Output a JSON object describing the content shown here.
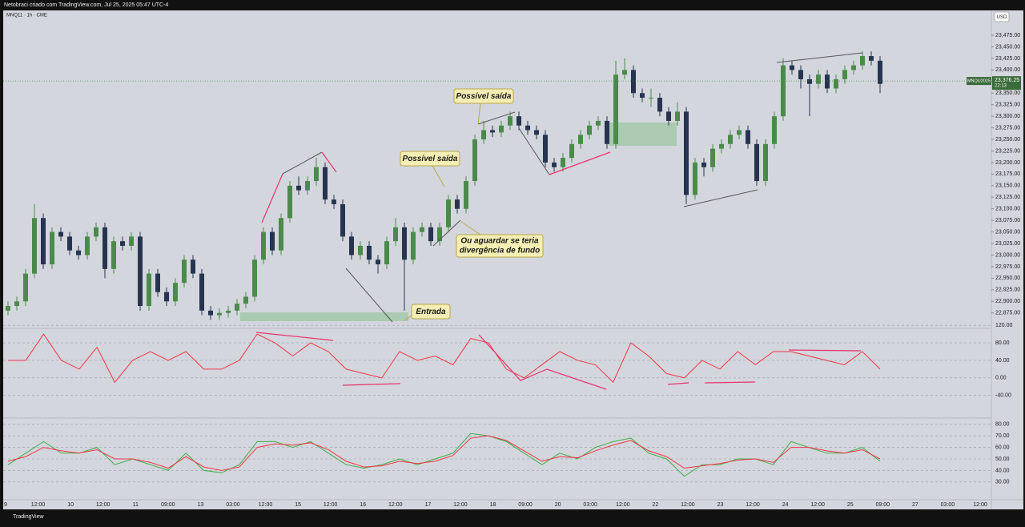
{
  "header": {
    "caption": "Netobraci criado com TradingView.com, Jul 25, 2025 05:47 UTC-4",
    "legend": "MNQ11 · 1h · CME",
    "currency": "USD",
    "footer": "TradingView"
  },
  "chart_data": [
    {
      "type": "candlestick",
      "up_color": "#4b8a4b",
      "down_color": "#26344f",
      "candles": [
        [
          22880,
          22900,
          22870,
          22890
        ],
        [
          22890,
          22910,
          22880,
          22900
        ],
        [
          22900,
          22970,
          22890,
          22960
        ],
        [
          22960,
          23110,
          22950,
          23080
        ],
        [
          23080,
          23090,
          22970,
          22980
        ],
        [
          22980,
          23060,
          22970,
          23050
        ],
        [
          23050,
          23060,
          23030,
          23040
        ],
        [
          23040,
          23050,
          23000,
          23010
        ],
        [
          23010,
          23020,
          22990,
          23000
        ],
        [
          23000,
          23050,
          22990,
          23040
        ],
        [
          23040,
          23070,
          23030,
          23060
        ],
        [
          23060,
          23070,
          22950,
          22970
        ],
        [
          22970,
          23040,
          22960,
          23030
        ],
        [
          23030,
          23040,
          23010,
          23020
        ],
        [
          23020,
          23050,
          23010,
          23040
        ],
        [
          23040,
          23050,
          22880,
          22890
        ],
        [
          22890,
          22970,
          22880,
          22960
        ],
        [
          22960,
          22970,
          22910,
          22920
        ],
        [
          22920,
          22930,
          22890,
          22900
        ],
        [
          22900,
          22950,
          22890,
          22940
        ],
        [
          22940,
          23000,
          22930,
          22990
        ],
        [
          22990,
          23000,
          22950,
          22960
        ],
        [
          22960,
          22970,
          22870,
          22880
        ],
        [
          22880,
          22890,
          22860,
          22870
        ],
        [
          22870,
          22885,
          22860,
          22875
        ],
        [
          22875,
          22890,
          22865,
          22880
        ],
        [
          22880,
          22905,
          22870,
          22895
        ],
        [
          22895,
          22920,
          22885,
          22910
        ],
        [
          22910,
          23000,
          22900,
          22990
        ],
        [
          22990,
          23060,
          22980,
          23050
        ],
        [
          23050,
          23060,
          23000,
          23010
        ],
        [
          23010,
          23090,
          23000,
          23080
        ],
        [
          23080,
          23160,
          23070,
          23150
        ],
        [
          23150,
          23170,
          23130,
          23140
        ],
        [
          23140,
          23170,
          23130,
          23160
        ],
        [
          23160,
          23210,
          23150,
          23190
        ],
        [
          23190,
          23200,
          23110,
          23120
        ],
        [
          23120,
          23130,
          23100,
          23110
        ],
        [
          23110,
          23120,
          23030,
          23040
        ],
        [
          23040,
          23050,
          22990,
          23000
        ],
        [
          23000,
          23030,
          22990,
          23020
        ],
        [
          23020,
          23030,
          22980,
          22990
        ],
        [
          22990,
          23000,
          22960,
          22980
        ],
        [
          22980,
          23040,
          22970,
          23030
        ],
        [
          23030,
          23080,
          23020,
          23060
        ],
        [
          23060,
          23070,
          22880,
          22990
        ],
        [
          22990,
          23060,
          22980,
          23050
        ],
        [
          23050,
          23070,
          23040,
          23060
        ],
        [
          23060,
          23070,
          23020,
          23030
        ],
        [
          23030,
          23070,
          23020,
          23060
        ],
        [
          23060,
          23130,
          23050,
          23120
        ],
        [
          23120,
          23130,
          23090,
          23100
        ],
        [
          23100,
          23170,
          23090,
          23160
        ],
        [
          23160,
          23260,
          23150,
          23250
        ],
        [
          23250,
          23290,
          23240,
          23270
        ],
        [
          23270,
          23280,
          23255,
          23265
        ],
        [
          23265,
          23290,
          23255,
          23280
        ],
        [
          23280,
          23310,
          23270,
          23300
        ],
        [
          23300,
          23310,
          23270,
          23280
        ],
        [
          23280,
          23290,
          23260,
          23270
        ],
        [
          23270,
          23280,
          23250,
          23260
        ],
        [
          23260,
          23270,
          23190,
          23200
        ],
        [
          23200,
          23210,
          23180,
          23190
        ],
        [
          23190,
          23220,
          23180,
          23210
        ],
        [
          23210,
          23250,
          23200,
          23240
        ],
        [
          23240,
          23270,
          23230,
          23260
        ],
        [
          23260,
          23290,
          23250,
          23280
        ],
        [
          23280,
          23300,
          23270,
          23290
        ],
        [
          23290,
          23300,
          23230,
          23240
        ],
        [
          23240,
          23420,
          23230,
          23390
        ],
        [
          23390,
          23425,
          23380,
          23400
        ],
        [
          23400,
          23410,
          23340,
          23350
        ],
        [
          23350,
          23360,
          23330,
          23340
        ],
        [
          23340,
          23360,
          23320,
          23340
        ],
        [
          23340,
          23350,
          23300,
          23310
        ],
        [
          23310,
          23320,
          23280,
          23290
        ],
        [
          23290,
          23330,
          23280,
          23310
        ],
        [
          23310,
          23320,
          23110,
          23130
        ],
        [
          23130,
          23210,
          23120,
          23200
        ],
        [
          23200,
          23210,
          23170,
          23190
        ],
        [
          23190,
          23240,
          23180,
          23230
        ],
        [
          23230,
          23250,
          23220,
          23240
        ],
        [
          23240,
          23270,
          23230,
          23260
        ],
        [
          23260,
          23280,
          23250,
          23270
        ],
        [
          23270,
          23280,
          23230,
          23240
        ],
        [
          23240,
          23250,
          23150,
          23160
        ],
        [
          23160,
          23250,
          23150,
          23240
        ],
        [
          23240,
          23310,
          23230,
          23300
        ],
        [
          23300,
          23425,
          23290,
          23410
        ],
        [
          23410,
          23420,
          23390,
          23400
        ],
        [
          23400,
          23410,
          23360,
          23380
        ],
        [
          23380,
          23390,
          23300,
          23370
        ],
        [
          23370,
          23400,
          23360,
          23390
        ],
        [
          23390,
          23400,
          23350,
          23360
        ],
        [
          23360,
          23390,
          23350,
          23380
        ],
        [
          23380,
          23410,
          23370,
          23400
        ],
        [
          23400,
          23420,
          23390,
          23410
        ],
        [
          23410,
          23440,
          23400,
          23430
        ],
        [
          23430,
          23440,
          23410,
          23420
        ],
        [
          23420,
          23430,
          23350,
          23370
        ]
      ],
      "ylim": [
        22852,
        23527
      ],
      "yticks": [
        {
          "value": 23475,
          "label": "23,475.00"
        },
        {
          "value": 23450,
          "label": "23,450.00"
        },
        {
          "value": 23425,
          "label": "23,425.00"
        },
        {
          "value": 23400,
          "label": "23,400.00"
        },
        {
          "value": 23375,
          "label": "23,375.00"
        },
        {
          "value": 23350,
          "label": "23,350.00"
        },
        {
          "value": 23325,
          "label": "23,325.00"
        },
        {
          "value": 23300,
          "label": "23,300.00"
        },
        {
          "value": 23275,
          "label": "23,275.00"
        },
        {
          "value": 23250,
          "label": "23,250.00"
        },
        {
          "value": 23225,
          "label": "23,225.00"
        },
        {
          "value": 23200,
          "label": "23,200.00"
        },
        {
          "value": 23175,
          "label": "23,175.00"
        },
        {
          "value": 23150,
          "label": "23,150.00"
        },
        {
          "value": 23125,
          "label": "23,125.00"
        },
        {
          "value": 23100,
          "label": "23,100.00"
        },
        {
          "value": 23075,
          "label": "23,075.00"
        },
        {
          "value": 23050,
          "label": "23,050.00"
        },
        {
          "value": 23025,
          "label": "23,025.00"
        },
        {
          "value": 23000,
          "label": "23,000.00"
        },
        {
          "value": 22975,
          "label": "22,975.00"
        },
        {
          "value": 22950,
          "label": "22,950.00"
        },
        {
          "value": 22925,
          "label": "22,925.00"
        },
        {
          "value": 22900,
          "label": "22,900.00"
        },
        {
          "value": 22875,
          "label": "22,875.00"
        }
      ],
      "last_price": {
        "value": 23376.25,
        "label": "23,376.25"
      },
      "symbol": "MNQU2025",
      "countdown": "22:13",
      "annotations": [
        "Possível saída",
        "Possível saída",
        [
          "Ou aguardar se teria",
          "divergência de fundo"
        ],
        "Entrada"
      ],
      "x_labels": [
        "9",
        "12:00",
        "10",
        "12:00",
        "11",
        "09:00",
        "13",
        "03:00",
        "12:00",
        "15",
        "12:00",
        "16",
        "12:00",
        "17",
        "12:00",
        "18",
        "09:00",
        "20",
        "03:00",
        "12:00",
        "22",
        "12:00",
        "23",
        "12:00",
        "24",
        "12:00",
        "25",
        "09:00",
        "27",
        "03:00",
        "12:00"
      ]
    },
    {
      "type": "line",
      "color": "#f23645",
      "values": [
        40,
        40,
        100,
        40,
        20,
        70,
        -10,
        40,
        60,
        40,
        60,
        20,
        20,
        40,
        100,
        80,
        50,
        80,
        60,
        20,
        10,
        0,
        60,
        40,
        50,
        30,
        90,
        80,
        20,
        0,
        30,
        60,
        40,
        30,
        -10,
        80,
        50,
        10,
        0,
        40,
        20,
        60,
        30,
        60,
        60,
        50,
        40,
        30,
        60,
        20
      ],
      "ylim": [
        -88,
        124
      ],
      "yticks": [
        {
          "value": 120,
          "label": "120.00"
        },
        {
          "value": 80,
          "label": "80.00"
        },
        {
          "value": 40,
          "label": "40.00"
        },
        {
          "value": 0,
          "label": "0.00"
        },
        {
          "value": -40,
          "label": "-40.00"
        }
      ]
    },
    {
      "type": "line",
      "series": [
        {
          "color": "#3fae49",
          "values": [
            45,
            55,
            65,
            55,
            55,
            60,
            45,
            50,
            45,
            40,
            55,
            40,
            38,
            45,
            65,
            65,
            60,
            65,
            55,
            45,
            42,
            45,
            50,
            45,
            50,
            55,
            72,
            70,
            65,
            55,
            45,
            55,
            50,
            60,
            65,
            68,
            55,
            50,
            35,
            45,
            45,
            50,
            50,
            45,
            65,
            60,
            55,
            55,
            60,
            48
          ]
        },
        {
          "color": "#f23645",
          "values": [
            48,
            52,
            60,
            57,
            55,
            58,
            50,
            50,
            47,
            42,
            52,
            43,
            40,
            43,
            60,
            63,
            62,
            64,
            58,
            48,
            43,
            44,
            48,
            46,
            48,
            53,
            68,
            70,
            66,
            57,
            48,
            52,
            51,
            57,
            62,
            66,
            57,
            52,
            42,
            44,
            46,
            49,
            50,
            47,
            60,
            60,
            57,
            55,
            58,
            50
          ]
        }
      ],
      "ylim": [
        16,
        84
      ],
      "yticks": [
        {
          "value": 80,
          "label": "80.00"
        },
        {
          "value": 70,
          "label": "70.00"
        },
        {
          "value": 60,
          "label": "60.00"
        },
        {
          "value": 50,
          "label": "50.00"
        },
        {
          "value": 40,
          "label": "40.00"
        },
        {
          "value": 30,
          "label": "30.00"
        }
      ]
    }
  ]
}
